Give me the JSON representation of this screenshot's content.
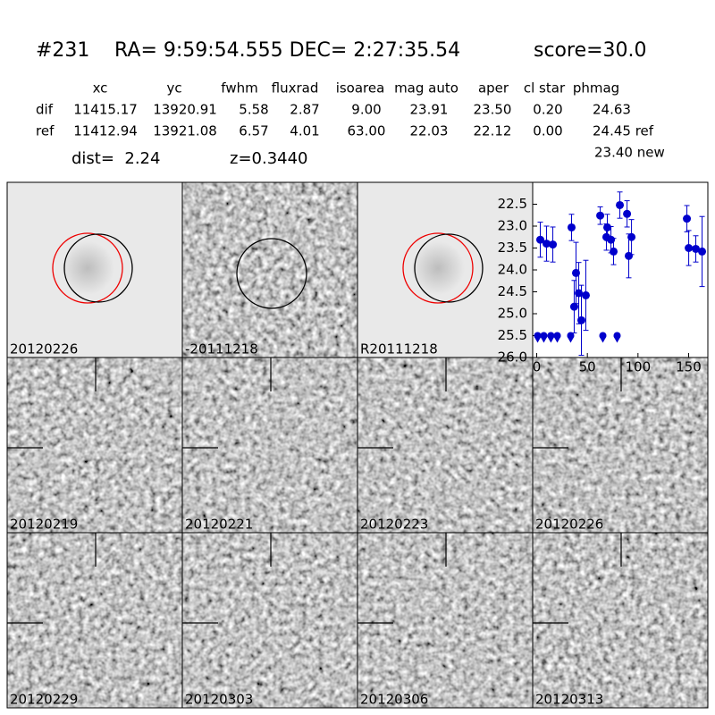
{
  "header": {
    "id": "#231",
    "coords": "RA= 9:59:54.555 DEC= 2:27:35.54",
    "score": "score=30.0"
  },
  "table": {
    "columns": [
      "xc",
      "yc",
      "fwhm",
      "fluxrad",
      "isoarea",
      "mag auto",
      "aper",
      "cl star",
      "phmag"
    ],
    "rows": [
      {
        "label": "dif",
        "cells": [
          "11415.17",
          "13920.91",
          "5.58",
          "2.87",
          "9.00",
          "23.91",
          "23.50",
          "0.20",
          "24.63"
        ]
      },
      {
        "label": "ref",
        "cells": [
          "11412.94",
          "13921.08",
          "6.57",
          "4.01",
          "63.00",
          "22.03",
          "22.12",
          "0.00",
          "24.45 ref"
        ]
      }
    ],
    "new_mag": "23.40 new",
    "dist": "dist=  2.24",
    "redshift": "z=0.3440"
  },
  "panels": [
    {
      "label": "20120226",
      "label_color": "#000000"
    },
    {
      "label": "-20111218",
      "label_color": "#000000"
    },
    {
      "label": "R20111218",
      "label_color": "#000000"
    },
    {
      "label": "20120219",
      "label_color": "#000000"
    },
    {
      "label": "20120221",
      "label_color": "#000000"
    },
    {
      "label": "20120223",
      "label_color": "#000000"
    },
    {
      "label": "20120226",
      "label_color": "#ff0000"
    },
    {
      "label": "20120229",
      "label_color": "#000000"
    },
    {
      "label": "20120303",
      "label_color": "#000000"
    },
    {
      "label": "20120306",
      "label_color": "#000000"
    },
    {
      "label": "20120313",
      "label_color": "#000000"
    }
  ],
  "chart_data": {
    "type": "scatter",
    "color": "#0000cc",
    "x": [
      3.5,
      9.7,
      15.9,
      34.4,
      37,
      38.8,
      41.5,
      44.1,
      48.5,
      62.7,
      68.8,
      69.7,
      73.3,
      75.9,
      82.1,
      89.2,
      90.9,
      93.6,
      148.3,
      150.1,
      157.1,
      163.3
    ],
    "values": [
      23.31,
      23.4,
      23.42,
      23.03,
      24.84,
      24.07,
      24.53,
      25.15,
      24.58,
      22.76,
      23.25,
      23.03,
      23.31,
      23.58,
      22.52,
      22.72,
      23.68,
      23.25,
      22.83,
      23.5,
      23.52,
      23.58
    ],
    "errors": [
      0.4,
      0.4,
      0.4,
      0.3,
      0.6,
      0.7,
      0.7,
      0.8,
      0.8,
      0.2,
      0.3,
      0.3,
      0.3,
      0.3,
      0.3,
      0.3,
      0.5,
      0.4,
      0.3,
      0.4,
      0.3,
      0.8
    ],
    "upper_limits": {
      "x": [
        0.9,
        7,
        14,
        20.3,
        33.5,
        65.3,
        79.4
      ],
      "values": [
        25.5,
        25.5,
        25.5,
        25.5,
        25.5,
        25.5,
        25.5
      ]
    },
    "xlim": [
      -4,
      169
    ],
    "ylim": [
      26.0,
      22.0
    ],
    "inverted_y": true,
    "xticks": [
      0,
      50,
      100,
      150
    ],
    "yticks": [
      22.5,
      {
        "value": 23,
        "label": "23.0"
      },
      23.5,
      {
        "value": 24,
        "label": "24.0"
      },
      24.5,
      {
        "value": 25,
        "label": "25.0"
      },
      25.5,
      {
        "value": 26,
        "label": "26.0"
      }
    ]
  }
}
